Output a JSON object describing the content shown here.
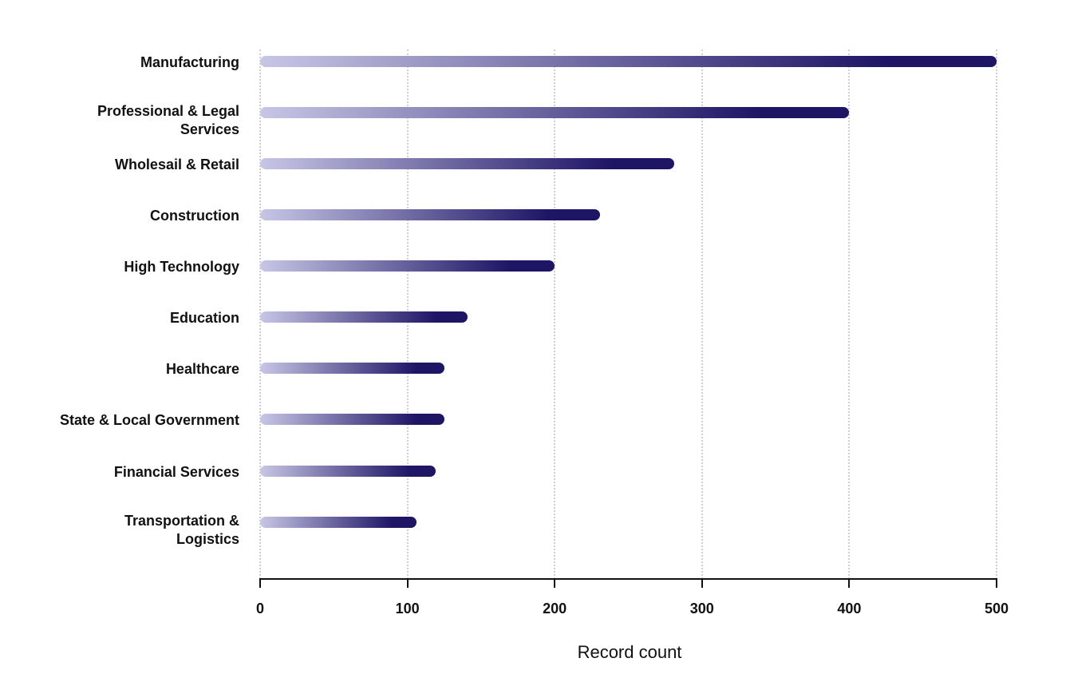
{
  "chart_data": {
    "type": "bar",
    "orientation": "horizontal",
    "title": "",
    "xlabel": "Record count",
    "ylabel": "",
    "xlim": [
      0,
      500
    ],
    "xticks": [
      0,
      100,
      200,
      300,
      400,
      500
    ],
    "grid": "vertical dotted",
    "legend": "none",
    "categories": [
      "Manufacturing",
      "Professional & Legal Services",
      "Wholesail & Retail",
      "Construction",
      "High Technology",
      "Education",
      "Healthcare",
      "State & Local Government",
      "Financial Services",
      "Transportation & Logistics"
    ],
    "values": [
      500,
      400,
      281,
      231,
      200,
      141,
      125,
      125,
      119,
      106
    ],
    "colors": {
      "gradient_start": "#c8c6e6",
      "gradient_end": "#1e1565"
    }
  },
  "labels": [
    [
      "Manufacturing"
    ],
    [
      "Professional & Legal",
      "Services"
    ],
    [
      "Wholesail & Retail"
    ],
    [
      "Construction"
    ],
    [
      "High Technology"
    ],
    [
      "Education"
    ],
    [
      "Healthcare"
    ],
    [
      "State & Local Government"
    ],
    [
      "Financial Services"
    ],
    [
      "Transportation &",
      "Logistics"
    ]
  ],
  "tick_labels": [
    "0",
    "100",
    "200",
    "300",
    "400",
    "500"
  ],
  "axis_title": "Record count"
}
